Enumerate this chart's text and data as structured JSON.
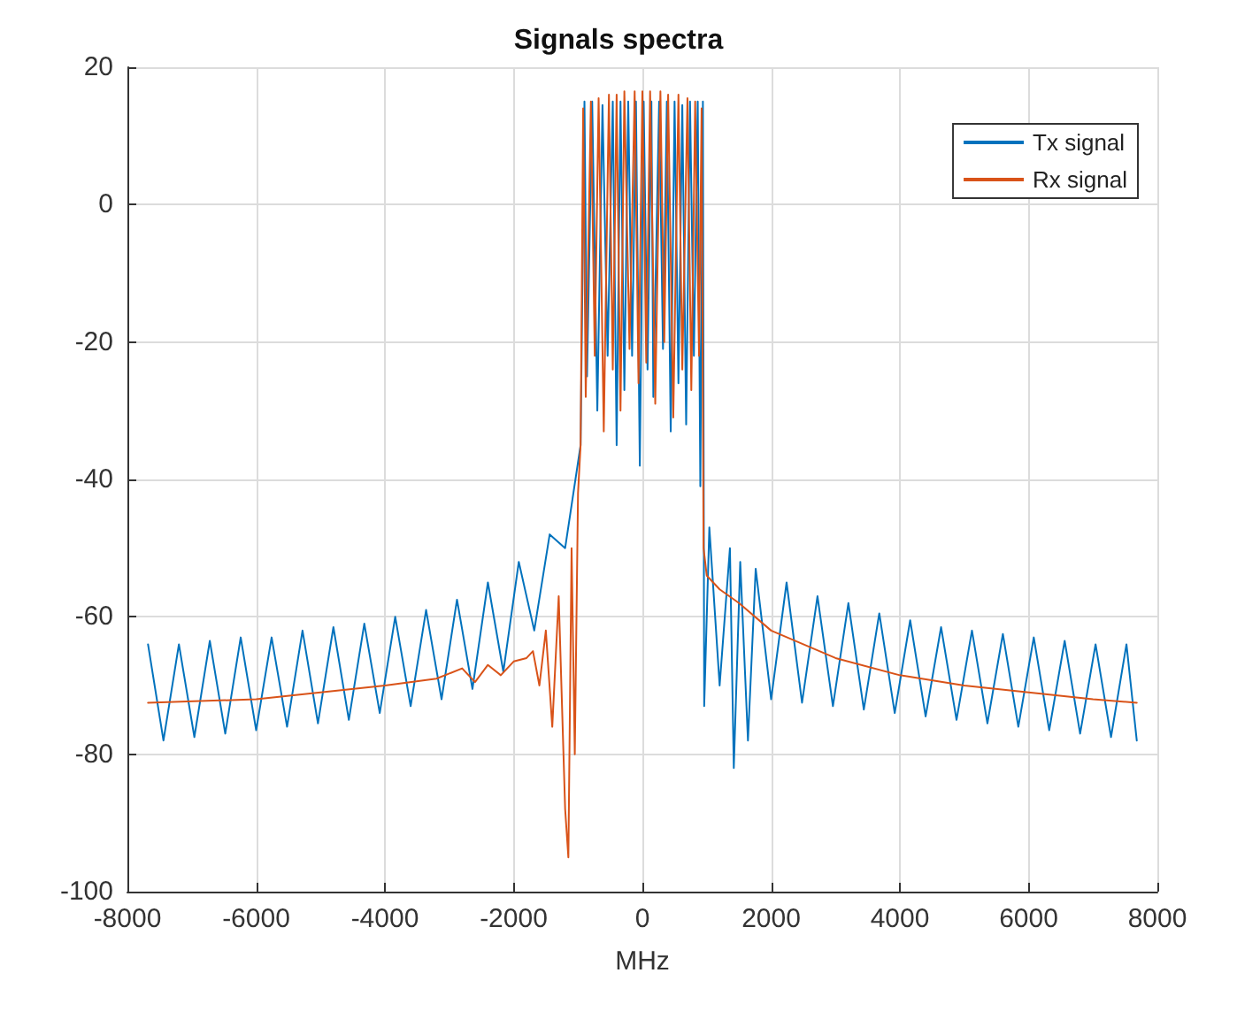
{
  "chart_data": {
    "type": "line",
    "title": "Signals spectra",
    "xlabel": "MHz",
    "xlim": [
      -8000,
      8000
    ],
    "xticks": [
      -8000,
      -6000,
      -4000,
      -2000,
      0,
      2000,
      4000,
      6000,
      8000
    ],
    "ylim": [
      -100,
      20
    ],
    "yticks": [
      -100,
      -80,
      -60,
      -40,
      -20,
      0,
      20
    ],
    "grid": true,
    "legend": "top right",
    "marker": "none",
    "line_style": "solid",
    "series": [
      {
        "name": "Tx signal",
        "color": "#0072bd",
        "x": [
          -7680,
          -7440,
          -7200,
          -6960,
          -6720,
          -6480,
          -6240,
          -6000,
          -5760,
          -5520,
          -5280,
          -5040,
          -4800,
          -4560,
          -4320,
          -4080,
          -3840,
          -3600,
          -3360,
          -3120,
          -2880,
          -2640,
          -2400,
          -2160,
          -1920,
          -1680,
          -1440,
          -1200,
          -960,
          -900,
          -860,
          -780,
          -700,
          -620,
          -540,
          -460,
          -400,
          -340,
          -280,
          -220,
          -160,
          -100,
          -40,
          20,
          80,
          140,
          170,
          260,
          320,
          380,
          440,
          500,
          560,
          620,
          680,
          740,
          800,
          860,
          900,
          940,
          960,
          1040,
          1200,
          1360,
          1420,
          1520,
          1640,
          1760,
          2000,
          2240,
          2480,
          2720,
          2960,
          3200,
          3440,
          3680,
          3920,
          4160,
          4400,
          4640,
          4880,
          5120,
          5360,
          5600,
          5840,
          6080,
          6320,
          6560,
          6800,
          7040,
          7280,
          7520,
          7680
        ],
        "values": [
          -64,
          -78,
          -64,
          -77.5,
          -63.5,
          -77,
          -63,
          -76.5,
          -63,
          -76,
          -62,
          -75.5,
          -61.5,
          -75,
          -61,
          -74,
          -60,
          -73,
          -59,
          -72,
          -57.5,
          -70.5,
          -55,
          -68,
          -52,
          -62,
          -48,
          -50,
          -35,
          15,
          -25,
          15,
          -30,
          14.5,
          -22,
          15,
          -35,
          15,
          -27,
          15,
          -22,
          15,
          -38,
          15,
          -24,
          15,
          -28,
          15,
          -21,
          15,
          -33,
          15,
          -26,
          14.5,
          -32,
          15,
          -22,
          15,
          -41,
          15,
          -73,
          -47,
          -70,
          -50,
          -82,
          -52,
          -78,
          -53,
          -72,
          -55,
          -72.5,
          -57,
          -73,
          -58,
          -73.5,
          -59.5,
          -74,
          -60.5,
          -74.5,
          -61.5,
          -75,
          -62,
          -75.5,
          -62.5,
          -76,
          -63,
          -76.5,
          -63.5,
          -77,
          -64,
          -77.5,
          -64,
          -78
        ]
      },
      {
        "name": "Rx signal",
        "color": "#d95319",
        "x": [
          -7680,
          -6000,
          -5000,
          -4000,
          -3200,
          -2800,
          -2600,
          -2400,
          -2200,
          -2000,
          -1800,
          -1700,
          -1600,
          -1500,
          -1400,
          -1300,
          -1200,
          -1150,
          -1100,
          -1050,
          -1000,
          -960,
          -920,
          -880,
          -800,
          -740,
          -680,
          -600,
          -520,
          -460,
          -400,
          -340,
          -280,
          -200,
          -120,
          -60,
          0,
          60,
          120,
          200,
          280,
          340,
          400,
          480,
          560,
          620,
          700,
          760,
          820,
          880,
          920,
          950,
          1000,
          1200,
          1500,
          2000,
          3000,
          4000,
          5000,
          6000,
          7000,
          7680
        ],
        "values": [
          -72.5,
          -72,
          -71,
          -70,
          -69,
          -67.5,
          -69.5,
          -67,
          -68.5,
          -66.5,
          -66,
          -65,
          -70,
          -62,
          -76,
          -57,
          -88,
          -95,
          -50,
          -80,
          -42,
          -35,
          14,
          -28,
          15,
          -22,
          15.5,
          -33,
          16,
          -24,
          16,
          -30,
          16.5,
          -21,
          16.5,
          -26,
          16.5,
          -23,
          16.5,
          -29,
          16.5,
          -20,
          16,
          -31,
          16,
          -24,
          15.5,
          -27,
          15,
          -22,
          14,
          -50,
          -54,
          -56,
          -58,
          -62,
          -66,
          -68.5,
          -70,
          -71,
          -72,
          -72.5
        ]
      }
    ]
  }
}
